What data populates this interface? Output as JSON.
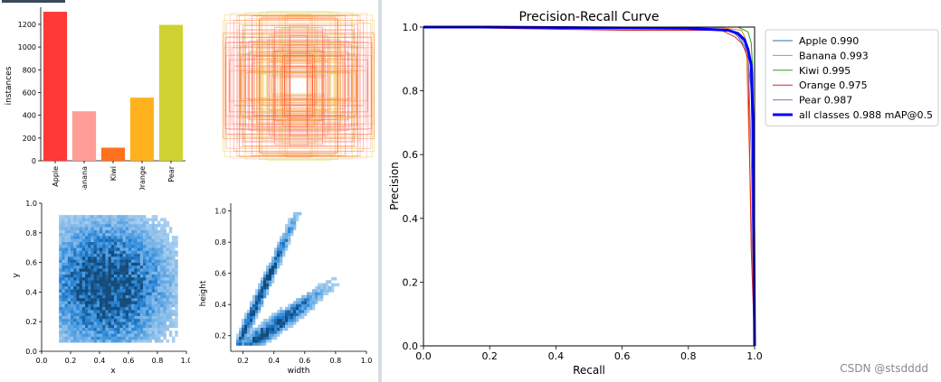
{
  "labels_panel": {
    "instances_chart": {
      "type": "bar",
      "categories": [
        "Apple",
        "Banana",
        "Kiwi",
        "Orange",
        "Pear"
      ],
      "values": [
        1310,
        435,
        115,
        555,
        1195
      ],
      "colors": [
        "#ff3838",
        "#ff9d97",
        "#ff701f",
        "#ffb21d",
        "#cfd231"
      ],
      "ylabel": "instances",
      "ylim": [
        0,
        1350
      ],
      "yticks": [
        "0",
        "200",
        "400",
        "600",
        "800",
        "1000",
        "1200"
      ]
    },
    "xy_hist": {
      "type": "heatmap",
      "xlabel": "x",
      "ylabel": "y",
      "xticks": [
        "0.0",
        "0.2",
        "0.4",
        "0.6",
        "0.8",
        "1.0"
      ],
      "yticks": [
        "0.0",
        "0.2",
        "0.4",
        "0.6",
        "0.8",
        "1.0"
      ]
    },
    "wh_hist": {
      "type": "heatmap",
      "xlabel": "width",
      "ylabel": "height",
      "xticks": [
        "0.2",
        "0.4",
        "0.6",
        "0.8",
        "1.0"
      ],
      "yticks": [
        "0.2",
        "0.4",
        "0.6",
        "0.8",
        "1.0"
      ]
    }
  },
  "chart_data": {
    "type": "line",
    "title": "Precision-Recall Curve",
    "xlabel": "Recall",
    "ylabel": "Precision",
    "xlim": [
      0,
      1
    ],
    "ylim": [
      0,
      1
    ],
    "xticks": [
      "0.0",
      "0.2",
      "0.4",
      "0.6",
      "0.8",
      "1.0"
    ],
    "yticks": [
      "0.0",
      "0.2",
      "0.4",
      "0.6",
      "0.8",
      "1.0"
    ],
    "legend_position": "outside-top-right",
    "series": [
      {
        "name": "Apple 0.990",
        "color": "#1f77b4",
        "x": [
          0,
          0.2,
          0.5,
          0.8,
          0.93,
          0.95,
          0.97,
          0.98,
          0.99,
          0.995,
          1.0
        ],
        "y": [
          1,
          1,
          0.998,
          0.995,
          0.99,
          0.97,
          0.94,
          0.9,
          0.8,
          0.5,
          0.0
        ]
      },
      {
        "name": "Banana 0.993",
        "color": "#ff7f0e",
        "x": [
          0,
          0.3,
          0.6,
          0.9,
          0.96,
          0.97,
          0.975,
          0.98,
          0.99,
          1.0
        ],
        "y": [
          1,
          1,
          1,
          0.998,
          0.99,
          0.97,
          0.95,
          0.75,
          0.4,
          0.0
        ]
      },
      {
        "name": "Kiwi 0.995",
        "color": "#2ca02c",
        "x": [
          0,
          0.5,
          0.95,
          0.98,
          0.99,
          0.995,
          1.0
        ],
        "y": [
          1,
          1,
          1,
          0.985,
          0.95,
          0.85,
          0.0
        ]
      },
      {
        "name": "Orange 0.975",
        "color": "#d62728",
        "x": [
          0,
          0.3,
          0.6,
          0.9,
          0.92,
          0.94,
          0.95,
          0.96,
          0.97,
          0.98,
          0.99,
          1.0
        ],
        "y": [
          1,
          0.995,
          0.99,
          0.99,
          0.98,
          0.97,
          0.96,
          0.95,
          0.93,
          0.9,
          0.3,
          0.0
        ]
      },
      {
        "name": "Pear 0.987",
        "color": "#9467bd",
        "x": [
          0,
          0.4,
          0.8,
          0.93,
          0.95,
          0.97,
          0.98,
          0.99,
          1.0
        ],
        "y": [
          1,
          1,
          0.995,
          0.99,
          0.975,
          0.95,
          0.92,
          0.6,
          0.0
        ]
      },
      {
        "name": "all classes 0.988 mAP@0.5",
        "color": "#0000ff",
        "bold": true,
        "x": [
          0,
          0.2,
          0.5,
          0.8,
          0.92,
          0.95,
          0.97,
          0.98,
          0.99,
          0.995,
          1.0
        ],
        "y": [
          1,
          1,
          0.998,
          0.996,
          0.99,
          0.98,
          0.96,
          0.93,
          0.88,
          0.7,
          0.0
        ]
      }
    ]
  },
  "watermark": "CSDN @stsdddd"
}
